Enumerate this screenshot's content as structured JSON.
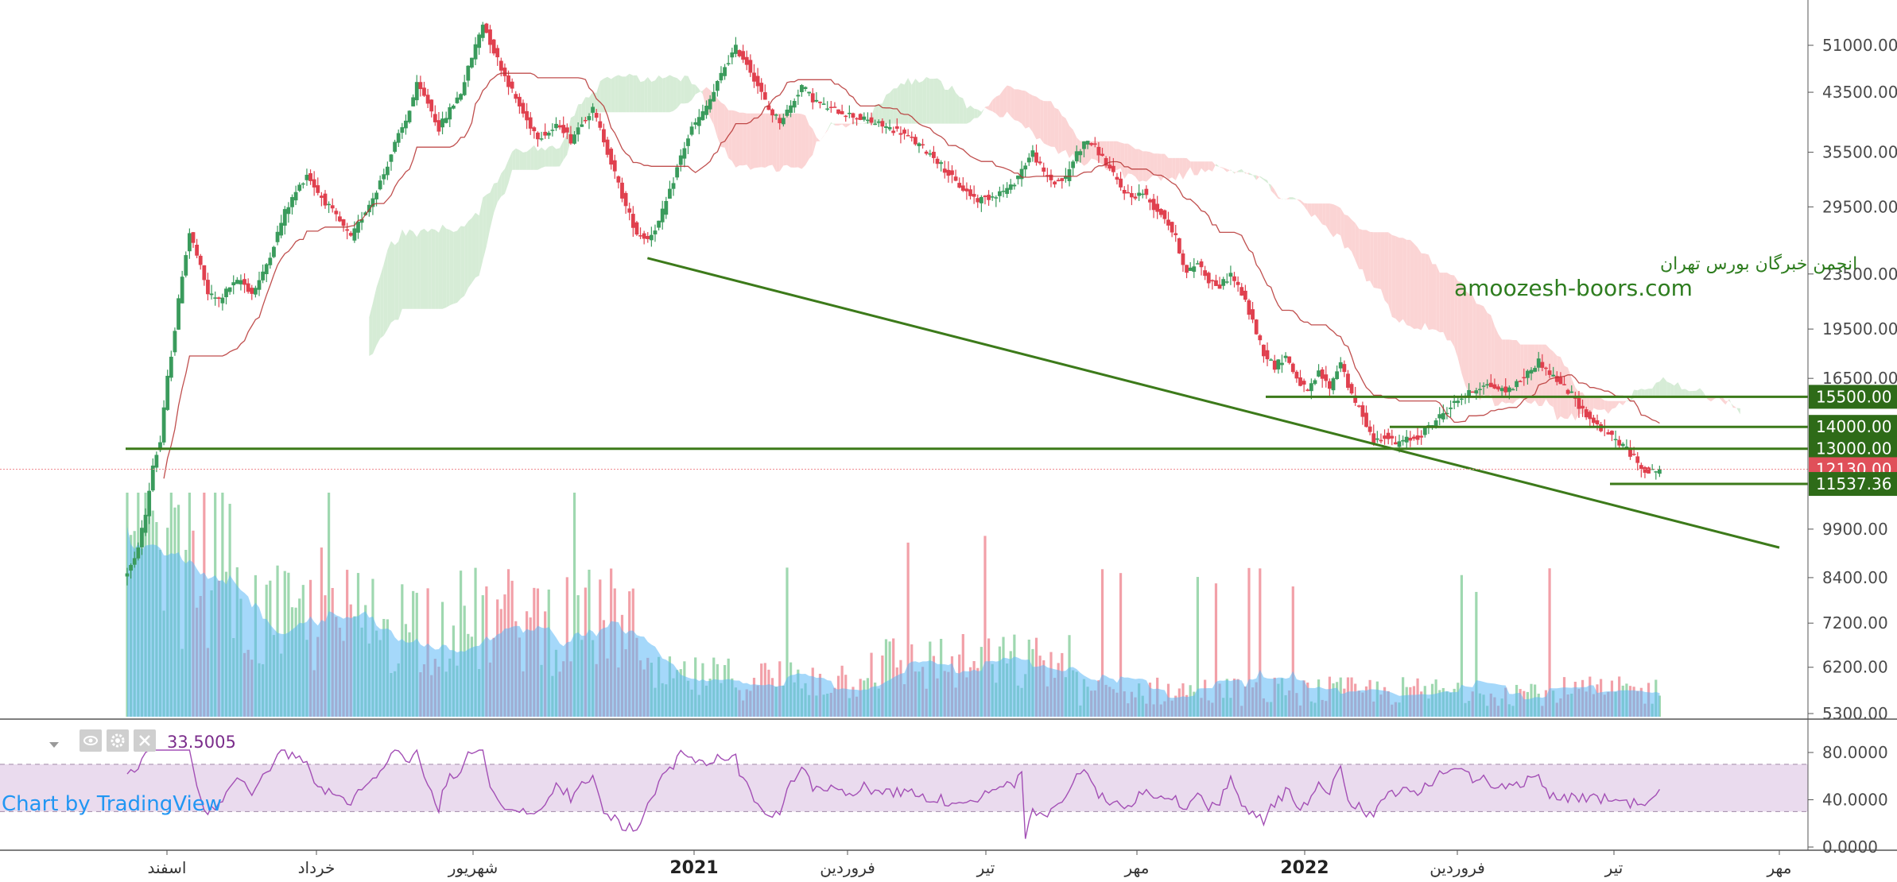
{
  "chart_data": {
    "type": "candlestick",
    "title": "",
    "price_axis": {
      "scale": "log",
      "ticks": [
        "51000.00",
        "43500.00",
        "35500.00",
        "29500.00",
        "23500.00",
        "19500.00",
        "16500.00",
        "9900.00",
        "8400.00",
        "7200.00",
        "6200.00",
        "5300.00"
      ]
    },
    "level_labels": [
      {
        "text": "15500.00",
        "value": 15500,
        "color": "#2e6b18"
      },
      {
        "text": "14000.00",
        "value": 14000,
        "color": "#2e6b18"
      },
      {
        "text": "13000.00",
        "value": 13000,
        "color": "#2e6b18"
      },
      {
        "text": "12130.00",
        "value": 12130,
        "color": "#e0505a"
      },
      {
        "text": "11537.36",
        "value": 11537.36,
        "color": "#2e6b18"
      }
    ],
    "x_axis": {
      "ticks": [
        {
          "label": "اسفند",
          "bold": false
        },
        {
          "label": "خرداد",
          "bold": false
        },
        {
          "label": "شهریور",
          "bold": false
        },
        {
          "label": "2021",
          "bold": true
        },
        {
          "label": "فروردین",
          "bold": false
        },
        {
          "label": "تیر",
          "bold": false
        },
        {
          "label": "مهر",
          "bold": false
        },
        {
          "label": "2022",
          "bold": true
        },
        {
          "label": "فروردین",
          "bold": false
        },
        {
          "label": "تیر",
          "bold": false
        },
        {
          "label": "مهر",
          "bold": false
        }
      ]
    },
    "price_path": [
      [
        0,
        8400
      ],
      [
        3,
        8900
      ],
      [
        6,
        10400
      ],
      [
        8,
        12300
      ],
      [
        10,
        13300
      ],
      [
        12,
        16500
      ],
      [
        14,
        19500
      ],
      [
        16,
        23500
      ],
      [
        18,
        27000
      ],
      [
        20,
        25000
      ],
      [
        23,
        22000
      ],
      [
        26,
        21500
      ],
      [
        29,
        22500
      ],
      [
        32,
        23000
      ],
      [
        35,
        22000
      ],
      [
        38,
        23500
      ],
      [
        41,
        26000
      ],
      [
        44,
        29000
      ],
      [
        47,
        31000
      ],
      [
        50,
        33000
      ],
      [
        53,
        31000
      ],
      [
        56,
        29500
      ],
      [
        59,
        28000
      ],
      [
        62,
        26500
      ],
      [
        65,
        28500
      ],
      [
        68,
        30500
      ],
      [
        71,
        33000
      ],
      [
        74,
        36500
      ],
      [
        77,
        39500
      ],
      [
        80,
        44500
      ],
      [
        83,
        42000
      ],
      [
        86,
        38500
      ],
      [
        89,
        41000
      ],
      [
        92,
        43500
      ],
      [
        95,
        49000
      ],
      [
        98,
        55000
      ],
      [
        101,
        50000
      ],
      [
        104,
        46000
      ],
      [
        107,
        42500
      ],
      [
        110,
        39500
      ],
      [
        113,
        37500
      ],
      [
        116,
        38000
      ],
      [
        119,
        39000
      ],
      [
        122,
        37000
      ],
      [
        125,
        39500
      ],
      [
        128,
        41000
      ],
      [
        131,
        37000
      ],
      [
        134,
        33000
      ],
      [
        137,
        29500
      ],
      [
        140,
        27000
      ],
      [
        143,
        26500
      ],
      [
        146,
        28000
      ],
      [
        149,
        31000
      ],
      [
        152,
        35000
      ],
      [
        155,
        38500
      ],
      [
        158,
        40500
      ],
      [
        161,
        43500
      ],
      [
        164,
        47500
      ],
      [
        167,
        50500
      ],
      [
        170,
        48000
      ],
      [
        173,
        44500
      ],
      [
        176,
        41000
      ],
      [
        179,
        39500
      ],
      [
        182,
        41500
      ],
      [
        185,
        44500
      ],
      [
        188,
        42500
      ],
      [
        191,
        41500
      ],
      [
        194,
        41000
      ],
      [
        197,
        40500
      ],
      [
        200,
        40000
      ],
      [
        203,
        39500
      ],
      [
        206,
        39000
      ],
      [
        209,
        38500
      ],
      [
        212,
        38000
      ],
      [
        215,
        37000
      ],
      [
        218,
        36000
      ],
      [
        221,
        35000
      ],
      [
        224,
        33500
      ],
      [
        227,
        32000
      ],
      [
        230,
        31000
      ],
      [
        233,
        30200
      ],
      [
        236,
        30500
      ],
      [
        239,
        31000
      ],
      [
        242,
        31500
      ],
      [
        245,
        33500
      ],
      [
        248,
        35500
      ],
      [
        251,
        33000
      ],
      [
        254,
        32000
      ],
      [
        257,
        32500
      ],
      [
        260,
        35500
      ],
      [
        263,
        37000
      ],
      [
        266,
        35500
      ],
      [
        269,
        33500
      ],
      [
        272,
        31500
      ],
      [
        275,
        30500
      ],
      [
        278,
        31000
      ],
      [
        281,
        29500
      ],
      [
        284,
        28500
      ],
      [
        287,
        26500
      ],
      [
        290,
        23500
      ],
      [
        293,
        24500
      ],
      [
        296,
        23000
      ],
      [
        299,
        22500
      ],
      [
        302,
        23500
      ],
      [
        305,
        22000
      ],
      [
        308,
        20000
      ],
      [
        311,
        18000
      ],
      [
        314,
        17200
      ],
      [
        317,
        17800
      ],
      [
        320,
        16500
      ],
      [
        323,
        15700
      ],
      [
        326,
        16800
      ],
      [
        329,
        16000
      ],
      [
        332,
        17500
      ],
      [
        335,
        15500
      ],
      [
        338,
        14600
      ],
      [
        341,
        13300
      ],
      [
        344,
        13600
      ],
      [
        347,
        13200
      ],
      [
        350,
        13400
      ],
      [
        353,
        13500
      ],
      [
        356,
        14000
      ],
      [
        359,
        14500
      ],
      [
        362,
        15000
      ],
      [
        365,
        15500
      ],
      [
        368,
        15800
      ],
      [
        371,
        16200
      ],
      [
        374,
        16000
      ],
      [
        377,
        15800
      ],
      [
        380,
        16200
      ],
      [
        383,
        16800
      ],
      [
        386,
        17500
      ],
      [
        389,
        16800
      ],
      [
        392,
        16200
      ],
      [
        395,
        15600
      ],
      [
        398,
        14800
      ],
      [
        401,
        14200
      ],
      [
        404,
        13800
      ],
      [
        407,
        13400
      ],
      [
        410,
        13000
      ],
      [
        413,
        12400
      ],
      [
        416,
        12000
      ],
      [
        419,
        12130
      ]
    ],
    "rsi": {
      "value_label": "33.5005",
      "ticks": [
        "80.0000",
        "40.0000",
        "0.0000"
      ],
      "upper": 70,
      "lower": 30
    },
    "watermark": {
      "line1": "انجمن خبرگان بورس تهران",
      "line2": "amoozesh-boors.com"
    },
    "credit": "Chart by TradingView",
    "colors": {
      "up": "#3a9b5c",
      "down": "#e0404e",
      "level": "#3c7a1a",
      "ichimoku_bull": "#d6ecd6",
      "ichimoku_bear": "#fbd4d4",
      "volume_area": "#5bb8f5",
      "rsi_band": "#eadbee",
      "rsi_line": "#a34fb5"
    }
  }
}
